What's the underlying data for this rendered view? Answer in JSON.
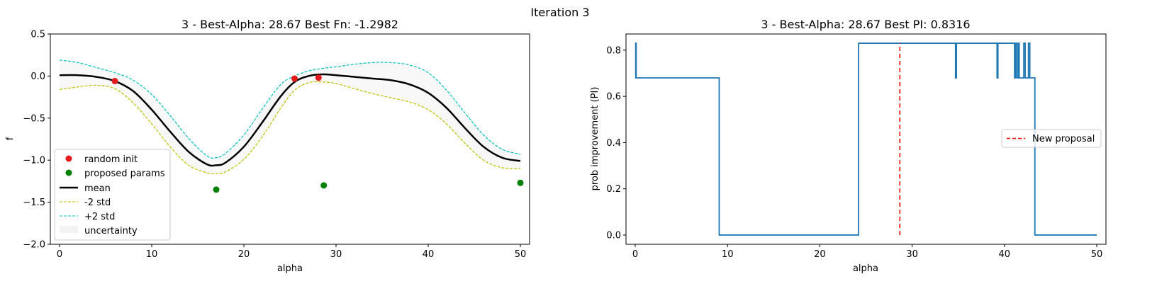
{
  "figure": {
    "suptitle": "Iteration 3"
  },
  "chart_data": [
    {
      "type": "line",
      "title": "3 - Best-Alpha: 28.67 Best Fn: -1.2982",
      "xlabel": "alpha",
      "ylabel": "f",
      "xlim": [
        -1,
        51
      ],
      "ylim": [
        -2.0,
        0.5
      ],
      "xticks": [
        0,
        10,
        20,
        30,
        40,
        50
      ],
      "yticks": [
        -2.0,
        -1.5,
        -1.0,
        -0.5,
        0.0,
        0.5
      ],
      "xtick_labels": [
        "0",
        "10",
        "20",
        "30",
        "40",
        "50"
      ],
      "ytick_labels": [
        "−2.0",
        "−1.5",
        "−1.0",
        "−0.5",
        "0.0",
        "0.5"
      ],
      "grid": false,
      "legend_position": "lower-left",
      "colors": {
        "mean": "#000000",
        "minus2std": "#bfbf00",
        "plus2std": "#00bfbf",
        "uncertainty": "#f3f3f3",
        "random_init": "#e31a1c",
        "proposed": "#008000"
      },
      "series": [
        {
          "name": "mean",
          "style": "line",
          "x": [
            0,
            2,
            4,
            6,
            8,
            10,
            12,
            14,
            16,
            17,
            18,
            20,
            22,
            24,
            25.5,
            27,
            28.5,
            30,
            32,
            34,
            36,
            38,
            40,
            42,
            44,
            46,
            48,
            50
          ],
          "y": [
            0.01,
            0.01,
            -0.01,
            -0.06,
            -0.18,
            -0.4,
            -0.66,
            -0.9,
            -1.05,
            -1.06,
            -1.03,
            -0.84,
            -0.55,
            -0.24,
            -0.07,
            0.0,
            0.02,
            0.01,
            -0.01,
            -0.03,
            -0.05,
            -0.1,
            -0.2,
            -0.38,
            -0.62,
            -0.84,
            -0.97,
            -1.01
          ]
        },
        {
          "name": "-2 std",
          "style": "dashed",
          "x": [
            0,
            2,
            4,
            6,
            8,
            10,
            12,
            14,
            16,
            17,
            18,
            20,
            22,
            24,
            25.5,
            27,
            28.5,
            30,
            32,
            34,
            36,
            38,
            40,
            42,
            44,
            46,
            48,
            50
          ],
          "y": [
            -0.16,
            -0.13,
            -0.11,
            -0.15,
            -0.32,
            -0.57,
            -0.84,
            -1.06,
            -1.15,
            -1.16,
            -1.14,
            -0.99,
            -0.72,
            -0.38,
            -0.17,
            -0.08,
            -0.07,
            -0.09,
            -0.15,
            -0.21,
            -0.26,
            -0.31,
            -0.4,
            -0.57,
            -0.8,
            -1.0,
            -1.09,
            -1.1
          ]
        },
        {
          "name": "+2 std",
          "style": "dashed",
          "x": [
            0,
            2,
            4,
            6,
            8,
            10,
            12,
            14,
            16,
            17,
            18,
            20,
            22,
            24,
            25.5,
            27,
            28.5,
            30,
            32,
            34,
            36,
            38,
            40,
            42,
            44,
            46,
            48,
            50
          ],
          "y": [
            0.19,
            0.16,
            0.1,
            0.04,
            -0.05,
            -0.22,
            -0.47,
            -0.74,
            -0.95,
            -0.97,
            -0.92,
            -0.7,
            -0.39,
            -0.1,
            0.0,
            0.06,
            0.09,
            0.11,
            0.14,
            0.16,
            0.16,
            0.13,
            0.04,
            -0.17,
            -0.44,
            -0.7,
            -0.87,
            -0.93
          ]
        },
        {
          "name": "uncertainty",
          "style": "fill-between-std"
        },
        {
          "name": "random init",
          "style": "scatter",
          "x": [
            6,
            25.5,
            28.1
          ],
          "y": [
            -0.06,
            -0.03,
            -0.02
          ]
        },
        {
          "name": "proposed params",
          "style": "scatter",
          "x": [
            17,
            28.67,
            50
          ],
          "y": [
            -1.35,
            -1.3,
            -1.27
          ]
        }
      ],
      "legend": [
        "random init",
        "proposed params",
        "mean",
        "-2 std",
        "+2 std",
        "uncertainty"
      ]
    },
    {
      "type": "line",
      "title": "3 - Best-Alpha: 28.67 Best PI: 0.8316",
      "xlabel": "alpha",
      "ylabel": "prob improvement (PI)",
      "xlim": [
        -1,
        51
      ],
      "ylim": [
        -0.04,
        0.87
      ],
      "xticks": [
        0,
        10,
        20,
        30,
        40,
        50
      ],
      "yticks": [
        0.0,
        0.2,
        0.4,
        0.6,
        0.8
      ],
      "xtick_labels": [
        "0",
        "10",
        "20",
        "30",
        "40",
        "50"
      ],
      "ytick_labels": [
        "0.0",
        "0.2",
        "0.4",
        "0.6",
        "0.8"
      ],
      "grid": false,
      "legend_position": "center-right",
      "colors": {
        "pi": "#1f77b4",
        "proposal": "#ff0000"
      },
      "series": [
        {
          "name": "PI",
          "style": "step",
          "x": [
            0,
            0.05,
            0.05,
            0.1,
            0.1,
            9.1,
            9.1,
            24.2,
            24.2,
            34.7,
            34.7,
            34.8,
            34.8,
            39.2,
            39.2,
            39.3,
            39.3,
            41.1,
            41.1,
            41.2,
            41.2,
            41.35,
            41.35,
            41.5,
            41.5,
            41.6,
            41.6,
            42.1,
            42.1,
            42.25,
            42.25,
            42.6,
            42.6,
            42.75,
            42.75,
            43.3,
            43.3,
            50
          ],
          "y": [
            0.68,
            0.68,
            0.83,
            0.83,
            0.68,
            0.68,
            0.0,
            0.0,
            0.83,
            0.83,
            0.68,
            0.68,
            0.83,
            0.83,
            0.68,
            0.68,
            0.83,
            0.83,
            0.68,
            0.68,
            0.83,
            0.83,
            0.68,
            0.68,
            0.83,
            0.83,
            0.68,
            0.68,
            0.83,
            0.83,
            0.68,
            0.68,
            0.83,
            0.83,
            0.68,
            0.68,
            0.0,
            0.0
          ]
        },
        {
          "name": "New proposal",
          "style": "vline-dashed",
          "x": 28.67,
          "y": [
            0.0,
            0.83
          ]
        }
      ],
      "legend": [
        "New proposal"
      ]
    }
  ]
}
